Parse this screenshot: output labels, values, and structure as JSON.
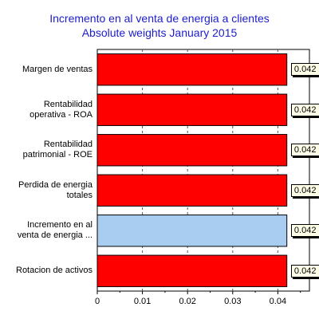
{
  "chart_data": {
    "type": "bar",
    "orientation": "horizontal",
    "title": "Incremento en al venta de energia  a clientes",
    "subtitle": "Absolute weights January 2015",
    "categories": [
      [
        "Margen de ventas"
      ],
      [
        "Rentabilidad",
        "operativa - ROA"
      ],
      [
        "Rentabilidad",
        "patrimonial - ROE"
      ],
      [
        "Perdida de energia",
        "totales"
      ],
      [
        "Incremento en al",
        "venta de energia  ..."
      ],
      [
        "Rotacion de activos"
      ]
    ],
    "values": [
      0.042,
      0.042,
      0.042,
      0.042,
      0.042,
      0.042
    ],
    "value_labels": [
      "0.042",
      "0.042",
      "0.042",
      "0.042",
      "0.042",
      "0.042"
    ],
    "highlighted_index": 4,
    "xlim": [
      0,
      0.047
    ],
    "xticks": [
      0,
      0.01,
      0.02,
      0.03,
      0.04
    ],
    "xtick_labels": [
      "0",
      "0.01",
      "0.02",
      "0.03",
      "0.04"
    ],
    "grid": "vertical-dashed",
    "colors": {
      "bar": "#ff0000",
      "highlight": "#a9cdf0",
      "title": "#1c1ccc"
    }
  }
}
